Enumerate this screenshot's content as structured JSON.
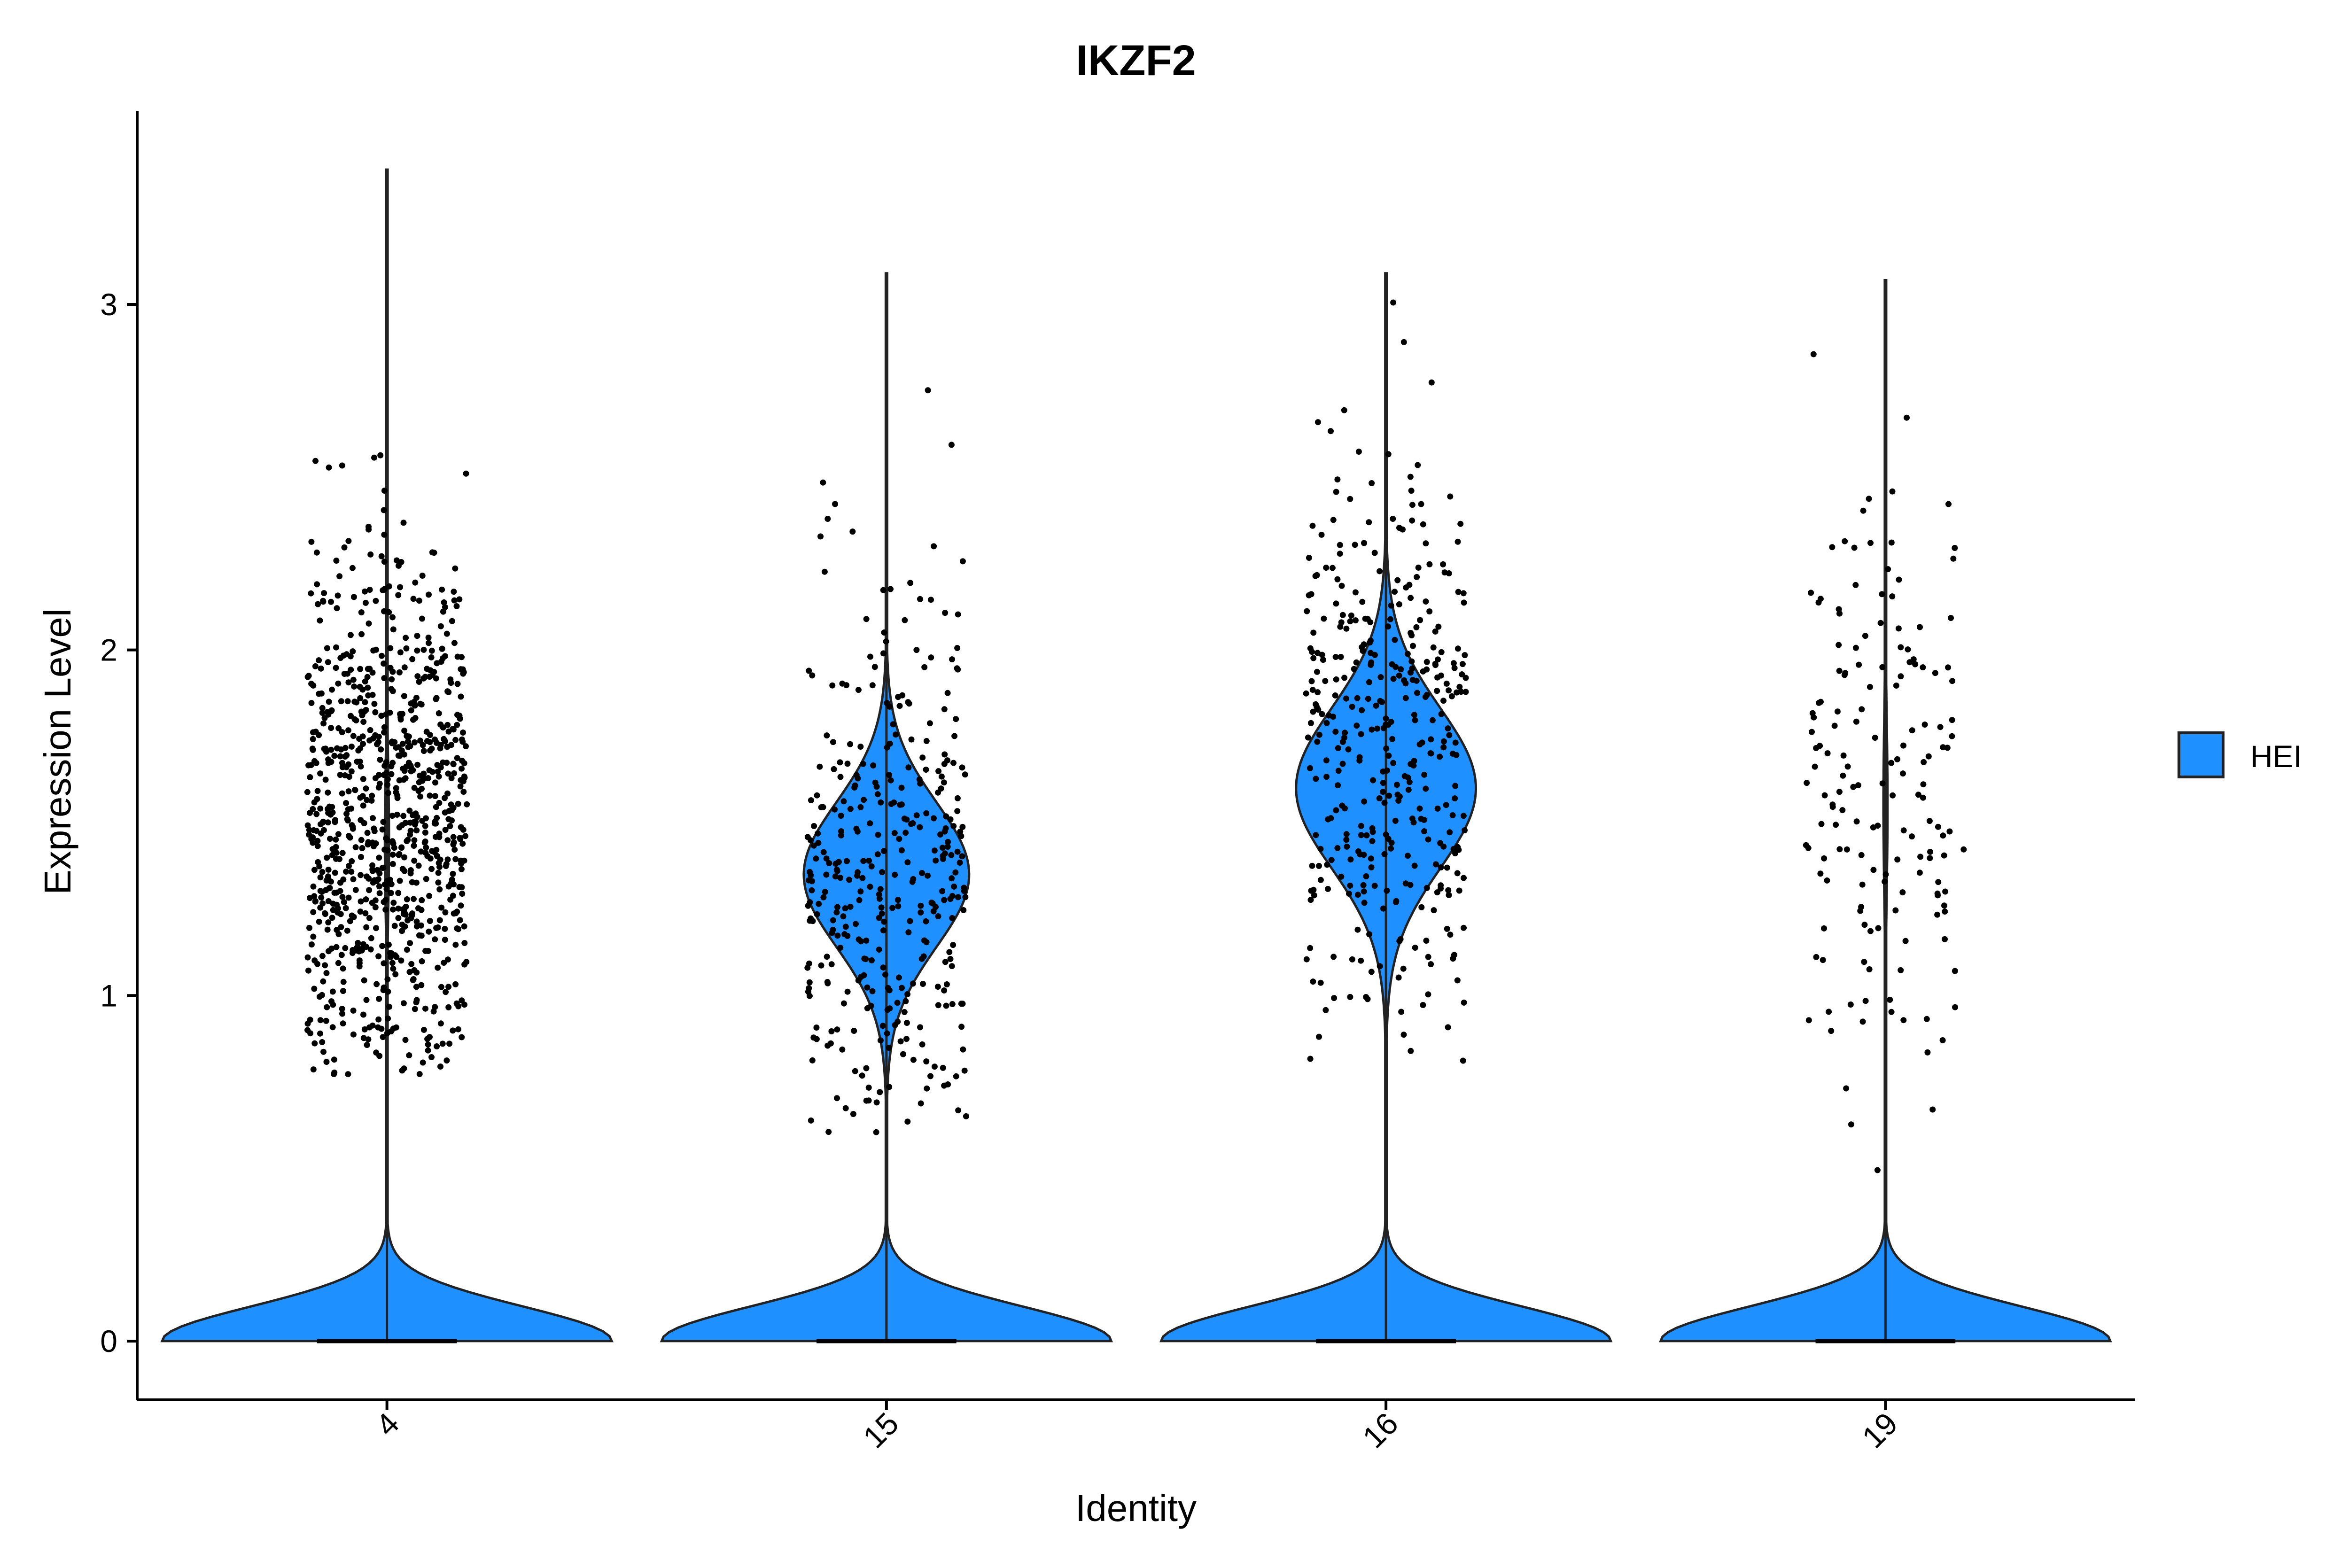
{
  "chart_data": {
    "type": "violin",
    "title": "IKZF2",
    "xlabel": "Identity",
    "ylabel": "Expression Level",
    "categories": [
      "4",
      "15",
      "16",
      "19"
    ],
    "yticks": [
      0,
      1,
      2,
      3
    ],
    "ylim": [
      -0.17,
      3.56
    ],
    "fill_color": "#1E90FF",
    "point_color": "#000000",
    "legend": {
      "entries": [
        {
          "label": "HEI",
          "color": "#1E90FF"
        }
      ],
      "placement": "right"
    },
    "series": [
      {
        "category": "4",
        "max": 3.39,
        "zero_weight": 0.985,
        "nonzero_mean": 1.52,
        "nonzero_sd": 0.38,
        "nonzero_range": [
          0.77,
          3.39
        ],
        "n_points": 900,
        "nonzero_center": 1.45
      },
      {
        "category": "15",
        "max": 3.09,
        "zero_weight": 0.62,
        "nonzero_mean": 1.35,
        "nonzero_sd": 0.38,
        "nonzero_range": [
          0.6,
          3.09
        ],
        "n_points": 360,
        "nonzero_center": 1.35
      },
      {
        "category": "16",
        "max": 3.09,
        "zero_weight": 0.6,
        "nonzero_mean": 1.72,
        "nonzero_sd": 0.42,
        "nonzero_range": [
          0.81,
          3.09
        ],
        "n_points": 380,
        "nonzero_center": 1.6
      },
      {
        "category": "19",
        "max": 3.07,
        "zero_weight": 0.985,
        "nonzero_mean": 1.65,
        "nonzero_sd": 0.45,
        "nonzero_range": [
          0.48,
          3.07
        ],
        "n_points": 160,
        "nonzero_center": 1.55
      }
    ]
  }
}
